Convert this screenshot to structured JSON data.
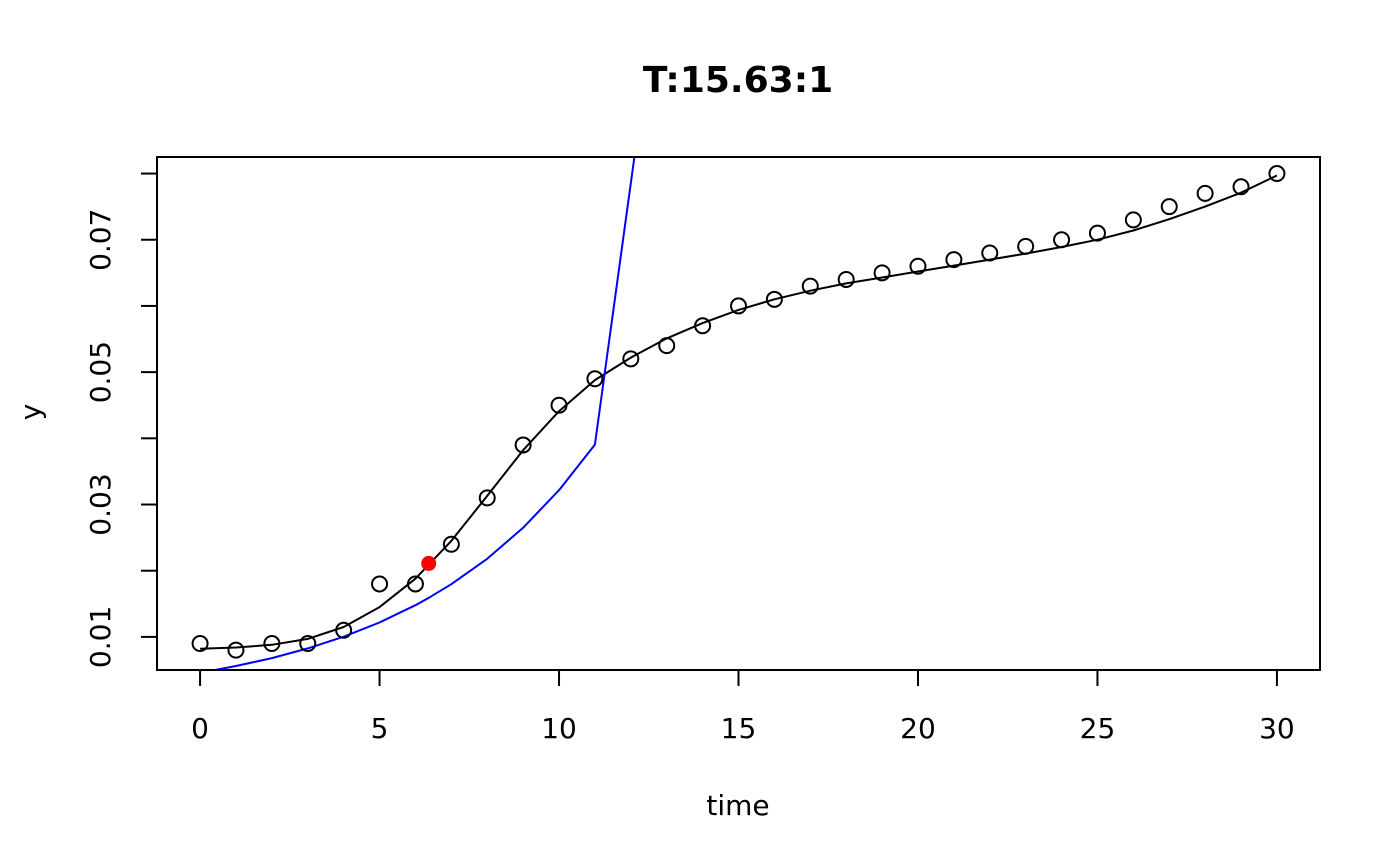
{
  "chart_data": {
    "type": "scatter",
    "title": "T:15.63:1",
    "xlabel": "time",
    "ylabel": "y",
    "xlim": [
      -1.2,
      31.2
    ],
    "ylim": [
      0.005,
      0.0825
    ],
    "x_ticks": [
      0,
      5,
      10,
      15,
      20,
      25,
      30
    ],
    "y_ticks": [
      0.01,
      0.02,
      0.03,
      0.04,
      0.05,
      0.06,
      0.07,
      0.08
    ],
    "y_tick_labels": [
      "0.01",
      "",
      "0.03",
      "",
      "0.05",
      "",
      "0.07",
      ""
    ],
    "grid": false,
    "legend": "none",
    "colors": {
      "points": "#000000",
      "smooth_fit": "#000000",
      "exponential_fit": "#0000ff",
      "highlight": "#ff0000"
    },
    "series": [
      {
        "kind": "points",
        "x": [
          0,
          1,
          2,
          3,
          4,
          5,
          6,
          7,
          8,
          9,
          10,
          11,
          12,
          13,
          14,
          15,
          16,
          17,
          18,
          19,
          20,
          21,
          22,
          23,
          24,
          25,
          26,
          27,
          28,
          29,
          30
        ],
        "values": [
          0.009,
          0.008,
          0.009,
          0.009,
          0.011,
          0.018,
          0.018,
          0.024,
          0.031,
          0.039,
          0.045,
          0.049,
          0.052,
          0.054,
          0.057,
          0.06,
          0.061,
          0.063,
          0.064,
          0.065,
          0.066,
          0.067,
          0.068,
          0.069,
          0.07,
          0.071,
          0.073,
          0.075,
          0.077,
          0.078,
          0.08
        ]
      },
      {
        "kind": "smooth-line",
        "x": [
          0,
          1,
          2,
          3,
          4,
          5,
          6,
          7,
          8,
          9,
          10,
          11,
          12,
          13,
          14,
          15,
          16,
          17,
          18,
          19,
          20,
          21,
          22,
          23,
          24,
          25,
          26,
          27,
          28,
          29,
          30
        ],
        "values": [
          0.0082,
          0.0084,
          0.0088,
          0.0097,
          0.0115,
          0.0145,
          0.0188,
          0.0245,
          0.0313,
          0.0382,
          0.0441,
          0.0488,
          0.0522,
          0.0551,
          0.0574,
          0.0594,
          0.061,
          0.0623,
          0.0634,
          0.0643,
          0.0652,
          0.0661,
          0.067,
          0.0679,
          0.0689,
          0.07,
          0.0714,
          0.0731,
          0.075,
          0.0771,
          0.0797
        ]
      },
      {
        "kind": "exponential-line",
        "x": [
          0.4,
          1,
          2,
          3,
          4,
          5,
          6,
          6.4,
          7,
          8,
          9,
          10,
          11,
          12.1
        ],
        "values": [
          0.00499,
          0.0056,
          0.0068,
          0.00826,
          0.01003,
          0.01218,
          0.01479,
          0.016,
          0.01796,
          0.0218,
          0.02649,
          0.03216,
          0.03905,
          0.0825
        ]
      },
      {
        "kind": "highlight-point",
        "x": [
          6.37
        ],
        "values": [
          0.0211
        ]
      }
    ]
  }
}
